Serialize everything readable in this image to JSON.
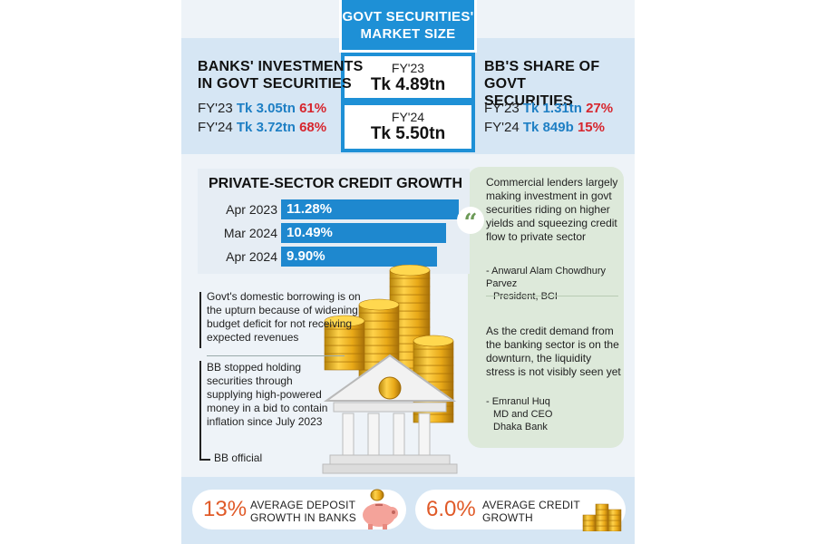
{
  "header": {
    "title_line1": "GOVT SECURITIES'",
    "title_line2": "MARKET SIZE"
  },
  "market_size": [
    {
      "year": "FY'23",
      "value": "Tk 4.89tn"
    },
    {
      "year": "FY'24",
      "value": "Tk 5.50tn"
    }
  ],
  "banks": {
    "heading_line1": "BANKS' INVESTMENTS",
    "heading_line2": "IN GOVT SECURITIES",
    "rows": [
      {
        "year": "FY'23",
        "amount": "Tk 3.05tn",
        "share": "61%"
      },
      {
        "year": "FY'24",
        "amount": "Tk 3.72tn",
        "share": "68%"
      }
    ]
  },
  "bb_share": {
    "heading_line1": "BB'S SHARE OF GOVT",
    "heading_line2": "SECURITIES",
    "rows": [
      {
        "year": "FY'23",
        "amount": "Tk 1.31tn",
        "share": "27%"
      },
      {
        "year": "FY'24",
        "amount": "Tk 849b",
        "share": "15%"
      }
    ]
  },
  "chart_data": {
    "type": "bar",
    "title": "PRIVATE-SECTOR CREDIT GROWTH",
    "categories": [
      "Apr 2023",
      "Mar 2024",
      "Apr 2024"
    ],
    "values": [
      11.28,
      10.49,
      9.9
    ],
    "value_labels": [
      "11.28%",
      "10.49%",
      "9.90%"
    ],
    "orientation": "horizontal",
    "colors": {
      "bar": "#1e88cf"
    }
  },
  "quotes": [
    {
      "text": [
        "Commercial lenders largely",
        "making investment in govt",
        "securities riding on higher",
        "yields and squeezing credit",
        "flow to private sector"
      ],
      "attribution": [
        "- Anwarul Alam Chowdhury Parvez",
        "President, BCI"
      ]
    },
    {
      "text": [
        "As the credit demand from",
        "the banking sector is on the",
        "downturn, the liquidity",
        "stress is not visibly seen yet"
      ],
      "attribution": [
        "- Emranul Huq",
        "MD and CEO",
        "Dhaka Bank"
      ]
    }
  ],
  "notes": {
    "first": [
      "Govt's domestic borrowing is on",
      "the upturn because of widening",
      "budget deficit for not receiving",
      "expected revenues"
    ],
    "second": [
      "BB stopped holding",
      "securities through",
      "supplying high-powered",
      "money in a bid to contain",
      "inflation since July 2023"
    ],
    "source": "BB official"
  },
  "footer": {
    "deposit_pct": "13%",
    "deposit_label_line1": "AVERAGE DEPOSIT",
    "deposit_label_line2": "GROWTH IN BANKS",
    "credit_pct": "6.0%",
    "credit_label_line1": "AVERAGE CREDIT",
    "credit_label_line2": "GROWTH"
  },
  "colors": {
    "accent_blue": "#1e90d6",
    "highlight_red": "#d7262e",
    "amount_blue": "#1e7fc4",
    "footer_orange": "#e05a28",
    "quote_green": "#dde9da"
  }
}
